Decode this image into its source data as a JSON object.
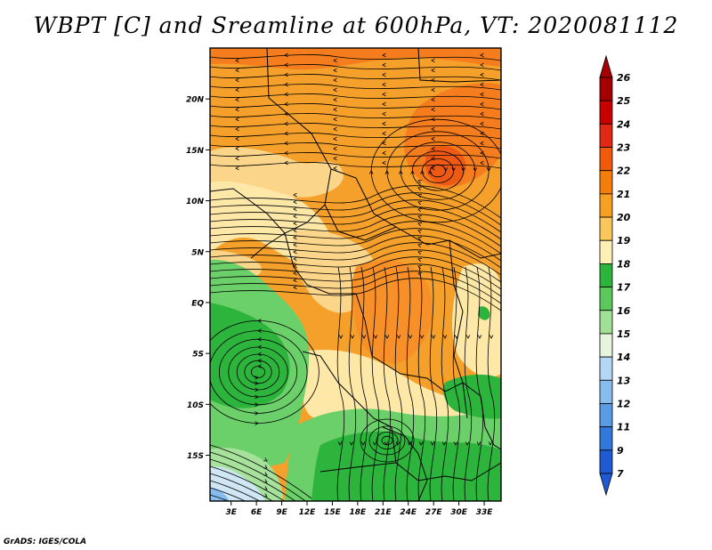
{
  "title": "WBPT [C] and Sreamline at 600hPa, VT: 2020081112",
  "footer": "GrADS: IGES/COLA",
  "map": {
    "lat_labels": [
      "20N",
      "15N",
      "10N",
      "5N",
      "EQ",
      "5S",
      "10S",
      "15S"
    ],
    "lat_values": [
      20,
      15,
      10,
      5,
      0,
      -5,
      -10,
      -15
    ],
    "lon_labels": [
      "3E",
      "6E",
      "9E",
      "12E",
      "15E",
      "18E",
      "21E",
      "24E",
      "27E",
      "30E",
      "33E"
    ],
    "lon_values": [
      3,
      6,
      9,
      12,
      15,
      18,
      21,
      24,
      27,
      30,
      33
    ],
    "lon_range": [
      0.5,
      35.0
    ],
    "lat_range": [
      -19.5,
      25.0
    ]
  },
  "colorbar": {
    "labels": [
      "26",
      "25",
      "24",
      "23",
      "22",
      "21",
      "20",
      "19",
      "18",
      "17",
      "16",
      "15",
      "14",
      "13",
      "12",
      "11",
      "9",
      "7"
    ],
    "colors": [
      "#a50000",
      "#c80000",
      "#e12814",
      "#f05a0a",
      "#f57d0a",
      "#f8a020",
      "#fac85a",
      "#fdf0b4",
      "#2db43c",
      "#5ac85a",
      "#a0e196",
      "#e6f5dc",
      "#b4d7f5",
      "#87bcef",
      "#5a9be6",
      "#3278dc",
      "#1e5ad2"
    ],
    "top_color": "#a50000",
    "bottom_color": "#1e5ad2"
  },
  "colors": {
    "orange": "#f5a02a",
    "deep_orange": "#f57d1e",
    "red_orange": "#ee5a14",
    "light_yellow": "#fde8a8",
    "pale_yellow": "#fbd589",
    "green": "#2db43c",
    "light_green": "#6cd06a",
    "pale_green": "#a6e29c",
    "pale_blue": "#cfe6f4"
  }
}
